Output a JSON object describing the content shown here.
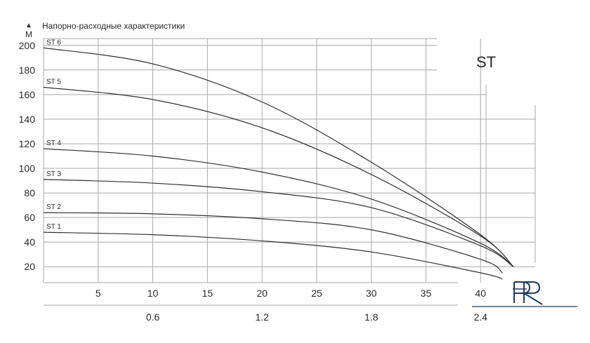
{
  "chart_data": {
    "type": "line",
    "title": "Напорно-расходные характеристики",
    "ylabel": "М",
    "series_box_label": "ST",
    "x_primary_ticks": [
      5,
      10,
      15,
      20,
      25,
      30,
      35,
      40
    ],
    "x_secondary_ticks": [
      "0.6",
      "1.2",
      "1.8",
      "2.4"
    ],
    "y_ticks": [
      20,
      40,
      60,
      80,
      100,
      120,
      140,
      160,
      180,
      200
    ],
    "xlim": [
      0,
      45
    ],
    "ylim": [
      0,
      200
    ],
    "grid": true,
    "series": [
      {
        "name": "ST 1",
        "x": [
          0,
          10,
          20,
          30,
          40,
          42
        ],
        "y": [
          48,
          46,
          41,
          32,
          15,
          10
        ]
      },
      {
        "name": "ST 2",
        "x": [
          0,
          10,
          20,
          30,
          40,
          42
        ],
        "y": [
          64,
          63,
          59,
          50,
          26,
          15
        ]
      },
      {
        "name": "ST 3",
        "x": [
          0,
          10,
          20,
          30,
          40,
          43
        ],
        "y": [
          91,
          88,
          81,
          68,
          37,
          20
        ]
      },
      {
        "name": "ST 4",
        "x": [
          0,
          10,
          20,
          30,
          40,
          43
        ],
        "y": [
          116,
          110,
          97,
          75,
          39,
          20
        ]
      },
      {
        "name": "ST 5",
        "x": [
          0,
          10,
          20,
          30,
          40,
          43
        ],
        "y": [
          166,
          156,
          133,
          95,
          45,
          20
        ]
      },
      {
        "name": "ST 6",
        "x": [
          0,
          10,
          20,
          30,
          40,
          43
        ],
        "y": [
          198,
          185,
          154,
          105,
          46,
          20
        ]
      }
    ]
  },
  "logo_text": "PR",
  "colors": {
    "curve": "#2f2f2f",
    "grid": "#a9a9a9",
    "text": "#2a2a2a",
    "logo": "#1f3a5a"
  }
}
